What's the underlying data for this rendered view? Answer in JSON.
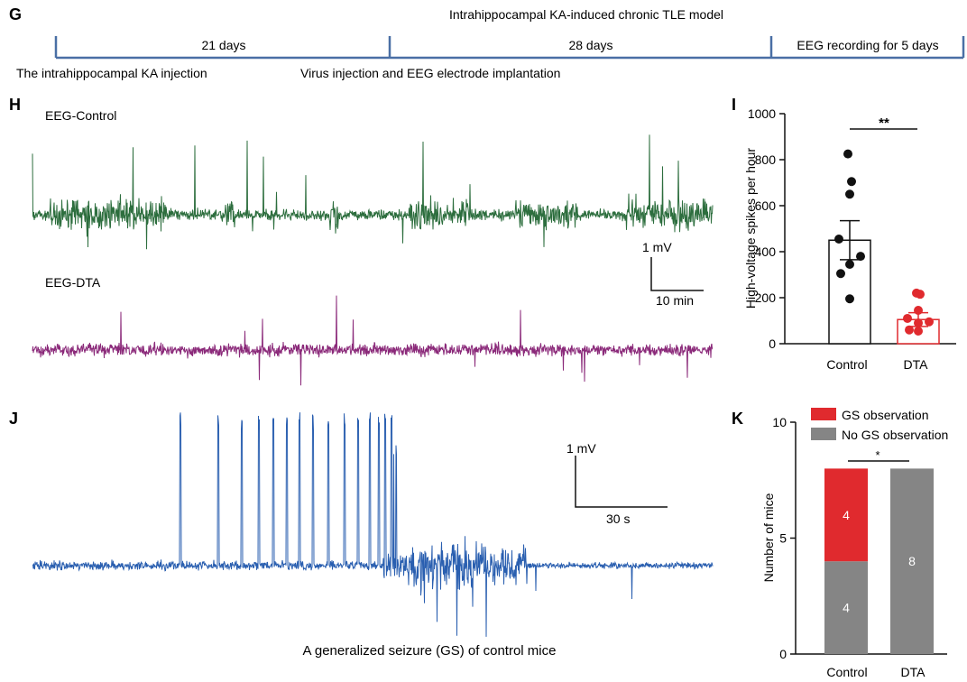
{
  "panel_labels": {
    "g": "G",
    "h": "H",
    "i": "I",
    "j": "J",
    "k": "K"
  },
  "timeline": {
    "title": "Intrahippocampal KA-induced chronic TLE model",
    "segments": [
      "21 days",
      "28 days",
      "EEG recording for 5 days"
    ],
    "events": [
      "The intrahippocampal KA injection",
      "Virus injection and EEG electrode implantation"
    ]
  },
  "traces": {
    "control_label": "EEG-Control",
    "dta_label": "EEG-DTA",
    "scale_h": {
      "v": "1 mV",
      "t": "10 min"
    },
    "scale_j": {
      "v": "1 mV",
      "t": "30 s"
    },
    "seizure_caption": "A generalized seizure (GS) of control mice"
  },
  "colors": {
    "control": "#2d6e3e",
    "dta": "#8b2a7a",
    "seizure": "#2a5fb0",
    "red": "#e02a2e",
    "gray": "#858585",
    "timeline": "#4a6fa5"
  },
  "chart_data": [
    {
      "type": "bar",
      "title": "",
      "xlabel": "",
      "ylabel": "High-voltage spikes per hour",
      "categories": [
        "Control",
        "DTA"
      ],
      "values": [
        450,
        105
      ],
      "sem": [
        85,
        30
      ],
      "points": [
        [
          825,
          705,
          650,
          455,
          380,
          345,
          305,
          195
        ],
        [
          220,
          215,
          145,
          110,
          95,
          90,
          60,
          55
        ]
      ],
      "ylim": [
        0,
        1000
      ],
      "yticks": [
        "0",
        "200",
        "400",
        "600",
        "800",
        "1000"
      ],
      "significance": "**"
    },
    {
      "type": "bar",
      "title": "",
      "xlabel": "",
      "ylabel": "Number of mice",
      "categories": [
        "Control",
        "DTA"
      ],
      "series": [
        {
          "name": "No GS observation",
          "values": [
            4,
            8
          ]
        },
        {
          "name": "GS observation",
          "values": [
            4,
            0
          ]
        }
      ],
      "segment_labels": [
        "4",
        "4",
        "8"
      ],
      "ylim": [
        0,
        10
      ],
      "yticks": [
        "0",
        "5",
        "10"
      ],
      "legend": [
        "GS observation",
        "No GS observation"
      ],
      "significance": "*"
    }
  ]
}
